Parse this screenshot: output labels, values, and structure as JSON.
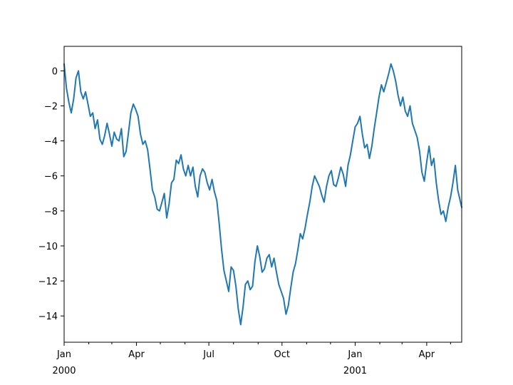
{
  "chart_data": {
    "type": "line",
    "title": "",
    "xlabel": "",
    "ylabel": "",
    "x_range": [
      "2000-01-01",
      "2001-05-15"
    ],
    "ylim": [
      -15.5,
      1.4
    ],
    "grid": false,
    "legend": "none",
    "y_ticks": [
      {
        "value": 0,
        "label": "0"
      },
      {
        "value": -2,
        "label": "−2"
      },
      {
        "value": -4,
        "label": "−4"
      },
      {
        "value": -6,
        "label": "−6"
      },
      {
        "value": -8,
        "label": "−8"
      },
      {
        "value": -10,
        "label": "−10"
      },
      {
        "value": -12,
        "label": "−12"
      },
      {
        "value": -14,
        "label": "−14"
      }
    ],
    "x_major_ticks": [
      {
        "date": "2000-01-01",
        "label": "Jan",
        "sublabel": "2000"
      },
      {
        "date": "2000-04-01",
        "label": "Apr",
        "sublabel": ""
      },
      {
        "date": "2000-07-01",
        "label": "Jul",
        "sublabel": ""
      },
      {
        "date": "2000-10-01",
        "label": "Oct",
        "sublabel": ""
      },
      {
        "date": "2001-01-01",
        "label": "Jan",
        "sublabel": "2001"
      },
      {
        "date": "2001-04-01",
        "label": "Apr",
        "sublabel": ""
      }
    ],
    "x_minor_ticks": [
      "2000-02-01",
      "2000-03-01",
      "2000-05-01",
      "2000-06-01",
      "2000-08-01",
      "2000-09-01",
      "2000-11-01",
      "2000-12-01",
      "2001-02-01",
      "2001-03-01",
      "2001-05-01"
    ],
    "series": [
      {
        "color": "#1f77b4",
        "points": [
          [
            "2000-01-01",
            0.4
          ],
          [
            "2000-01-04",
            -1.0
          ],
          [
            "2000-01-07",
            -1.8
          ],
          [
            "2000-01-10",
            -2.4
          ],
          [
            "2000-01-13",
            -1.6
          ],
          [
            "2000-01-16",
            -0.4
          ],
          [
            "2000-01-19",
            0.0
          ],
          [
            "2000-01-22",
            -1.2
          ],
          [
            "2000-01-25",
            -1.6
          ],
          [
            "2000-01-28",
            -1.2
          ],
          [
            "2000-01-31",
            -1.9
          ],
          [
            "2000-02-03",
            -2.6
          ],
          [
            "2000-02-06",
            -2.4
          ],
          [
            "2000-02-09",
            -3.3
          ],
          [
            "2000-02-12",
            -2.8
          ],
          [
            "2000-02-15",
            -3.9
          ],
          [
            "2000-02-18",
            -4.2
          ],
          [
            "2000-02-21",
            -3.7
          ],
          [
            "2000-02-24",
            -3.0
          ],
          [
            "2000-02-27",
            -3.6
          ],
          [
            "2000-03-01",
            -4.3
          ],
          [
            "2000-03-04",
            -3.5
          ],
          [
            "2000-03-07",
            -3.9
          ],
          [
            "2000-03-10",
            -4.0
          ],
          [
            "2000-03-13",
            -3.3
          ],
          [
            "2000-03-16",
            -4.9
          ],
          [
            "2000-03-19",
            -4.6
          ],
          [
            "2000-03-22",
            -3.5
          ],
          [
            "2000-03-25",
            -2.4
          ],
          [
            "2000-03-28",
            -1.9
          ],
          [
            "2000-03-31",
            -2.2
          ],
          [
            "2000-04-03",
            -2.6
          ],
          [
            "2000-04-06",
            -3.6
          ],
          [
            "2000-04-09",
            -4.2
          ],
          [
            "2000-04-12",
            -4.0
          ],
          [
            "2000-04-15",
            -4.5
          ],
          [
            "2000-04-18",
            -5.6
          ],
          [
            "2000-04-21",
            -6.8
          ],
          [
            "2000-04-24",
            -7.2
          ],
          [
            "2000-04-27",
            -7.9
          ],
          [
            "2000-04-30",
            -8.0
          ],
          [
            "2000-05-03",
            -7.5
          ],
          [
            "2000-05-06",
            -7.0
          ],
          [
            "2000-05-09",
            -8.4
          ],
          [
            "2000-05-12",
            -7.6
          ],
          [
            "2000-05-15",
            -6.4
          ],
          [
            "2000-05-18",
            -6.2
          ],
          [
            "2000-05-21",
            -5.1
          ],
          [
            "2000-05-24",
            -5.3
          ],
          [
            "2000-05-27",
            -4.8
          ],
          [
            "2000-05-30",
            -5.6
          ],
          [
            "2000-06-02",
            -6.0
          ],
          [
            "2000-06-05",
            -5.4
          ],
          [
            "2000-06-08",
            -6.0
          ],
          [
            "2000-06-11",
            -5.5
          ],
          [
            "2000-06-14",
            -6.6
          ],
          [
            "2000-06-17",
            -7.2
          ],
          [
            "2000-06-20",
            -6.0
          ],
          [
            "2000-06-23",
            -5.6
          ],
          [
            "2000-06-26",
            -5.8
          ],
          [
            "2000-06-29",
            -6.4
          ],
          [
            "2000-07-02",
            -6.8
          ],
          [
            "2000-07-05",
            -6.2
          ],
          [
            "2000-07-08",
            -6.9
          ],
          [
            "2000-07-11",
            -7.4
          ],
          [
            "2000-07-14",
            -8.7
          ],
          [
            "2000-07-17",
            -10.2
          ],
          [
            "2000-07-20",
            -11.4
          ],
          [
            "2000-07-23",
            -12.0
          ],
          [
            "2000-07-26",
            -12.6
          ],
          [
            "2000-07-29",
            -11.2
          ],
          [
            "2000-08-01",
            -11.4
          ],
          [
            "2000-08-04",
            -12.3
          ],
          [
            "2000-08-07",
            -13.6
          ],
          [
            "2000-08-10",
            -14.5
          ],
          [
            "2000-08-13",
            -13.5
          ],
          [
            "2000-08-16",
            -12.2
          ],
          [
            "2000-08-19",
            -12.0
          ],
          [
            "2000-08-22",
            -12.5
          ],
          [
            "2000-08-25",
            -12.3
          ],
          [
            "2000-08-28",
            -10.9
          ],
          [
            "2000-08-31",
            -10.0
          ],
          [
            "2000-09-03",
            -10.6
          ],
          [
            "2000-09-06",
            -11.5
          ],
          [
            "2000-09-09",
            -11.3
          ],
          [
            "2000-09-12",
            -10.7
          ],
          [
            "2000-09-15",
            -10.5
          ],
          [
            "2000-09-18",
            -11.2
          ],
          [
            "2000-09-21",
            -10.7
          ],
          [
            "2000-09-24",
            -11.5
          ],
          [
            "2000-09-27",
            -12.2
          ],
          [
            "2000-09-30",
            -12.6
          ],
          [
            "2000-10-03",
            -13.0
          ],
          [
            "2000-10-06",
            -13.9
          ],
          [
            "2000-10-09",
            -13.4
          ],
          [
            "2000-10-12",
            -12.4
          ],
          [
            "2000-10-15",
            -11.5
          ],
          [
            "2000-10-18",
            -11.0
          ],
          [
            "2000-10-21",
            -10.2
          ],
          [
            "2000-10-24",
            -9.3
          ],
          [
            "2000-10-27",
            -9.6
          ],
          [
            "2000-10-30",
            -9.0
          ],
          [
            "2000-11-02",
            -8.2
          ],
          [
            "2000-11-05",
            -7.5
          ],
          [
            "2000-11-08",
            -6.6
          ],
          [
            "2000-11-11",
            -6.0
          ],
          [
            "2000-11-14",
            -6.3
          ],
          [
            "2000-11-17",
            -6.6
          ],
          [
            "2000-11-20",
            -7.1
          ],
          [
            "2000-11-23",
            -7.5
          ],
          [
            "2000-11-26",
            -6.6
          ],
          [
            "2000-11-29",
            -6.0
          ],
          [
            "2000-12-02",
            -5.7
          ],
          [
            "2000-12-05",
            -6.5
          ],
          [
            "2000-12-08",
            -6.6
          ],
          [
            "2000-12-11",
            -6.1
          ],
          [
            "2000-12-14",
            -5.5
          ],
          [
            "2000-12-17",
            -5.9
          ],
          [
            "2000-12-20",
            -6.6
          ],
          [
            "2000-12-23",
            -5.4
          ],
          [
            "2000-12-26",
            -4.8
          ],
          [
            "2000-12-29",
            -4.0
          ],
          [
            "2001-01-01",
            -3.2
          ],
          [
            "2001-01-04",
            -3.0
          ],
          [
            "2001-01-07",
            -2.6
          ],
          [
            "2001-01-10",
            -3.6
          ],
          [
            "2001-01-13",
            -4.4
          ],
          [
            "2001-01-16",
            -4.2
          ],
          [
            "2001-01-19",
            -5.0
          ],
          [
            "2001-01-22",
            -4.3
          ],
          [
            "2001-01-25",
            -3.3
          ],
          [
            "2001-01-28",
            -2.4
          ],
          [
            "2001-01-31",
            -1.5
          ],
          [
            "2001-02-03",
            -0.8
          ],
          [
            "2001-02-06",
            -1.2
          ],
          [
            "2001-02-09",
            -0.7
          ],
          [
            "2001-02-12",
            -0.2
          ],
          [
            "2001-02-15",
            0.4
          ],
          [
            "2001-02-18",
            0.0
          ],
          [
            "2001-02-21",
            -0.6
          ],
          [
            "2001-02-24",
            -1.4
          ],
          [
            "2001-02-27",
            -2.0
          ],
          [
            "2001-03-02",
            -1.5
          ],
          [
            "2001-03-05",
            -2.3
          ],
          [
            "2001-03-08",
            -2.6
          ],
          [
            "2001-03-11",
            -2.0
          ],
          [
            "2001-03-14",
            -3.0
          ],
          [
            "2001-03-17",
            -3.4
          ],
          [
            "2001-03-20",
            -3.8
          ],
          [
            "2001-03-23",
            -4.6
          ],
          [
            "2001-03-26",
            -5.8
          ],
          [
            "2001-03-29",
            -6.3
          ],
          [
            "2001-04-01",
            -5.2
          ],
          [
            "2001-04-04",
            -4.3
          ],
          [
            "2001-04-07",
            -5.4
          ],
          [
            "2001-04-10",
            -5.0
          ],
          [
            "2001-04-13",
            -6.4
          ],
          [
            "2001-04-16",
            -7.4
          ],
          [
            "2001-04-19",
            -8.2
          ],
          [
            "2001-04-22",
            -8.0
          ],
          [
            "2001-04-25",
            -8.6
          ],
          [
            "2001-04-28",
            -7.8
          ],
          [
            "2001-05-01",
            -7.2
          ],
          [
            "2001-05-04",
            -6.4
          ],
          [
            "2001-05-07",
            -5.4
          ],
          [
            "2001-05-10",
            -6.8
          ],
          [
            "2001-05-15",
            -7.8
          ]
        ]
      }
    ]
  }
}
